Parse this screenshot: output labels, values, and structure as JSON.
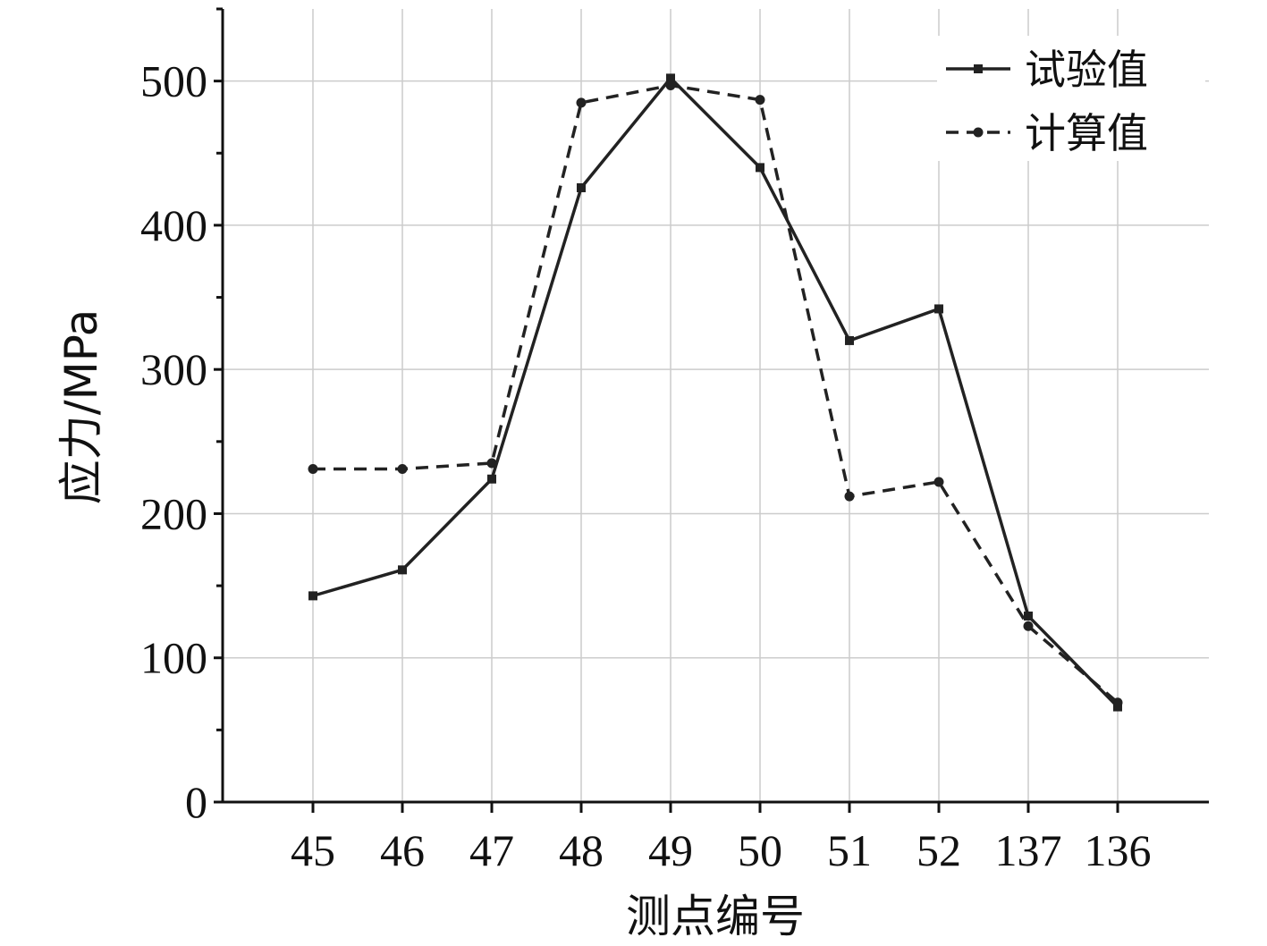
{
  "chart_data": {
    "type": "line",
    "categories": [
      "45",
      "46",
      "47",
      "48",
      "49",
      "50",
      "51",
      "52",
      "137",
      "136"
    ],
    "series": [
      {
        "name": "试验值",
        "values": [
          143,
          161,
          224,
          426,
          502,
          440,
          320,
          342,
          129,
          66
        ],
        "style": "solid",
        "marker": "square",
        "color": "#222222"
      },
      {
        "name": "计算值",
        "values": [
          231,
          231,
          235,
          485,
          497,
          487,
          212,
          222,
          122,
          69
        ],
        "style": "dashed",
        "marker": "circle",
        "color": "#222222"
      }
    ],
    "xlabel": "测点编号",
    "ylabel": "应力/MPa",
    "ylim": [
      0,
      550
    ],
    "yticks": [
      0,
      100,
      200,
      300,
      400,
      500
    ],
    "grid": true,
    "legend": "top-right"
  }
}
